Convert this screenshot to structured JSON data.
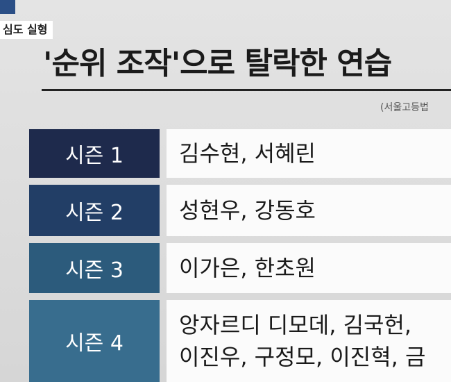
{
  "header": {
    "tag": "심도 실형",
    "title": "'순위 조작'으로 탈락한 연습",
    "source": "(서울고등법"
  },
  "table": {
    "rows": [
      {
        "season": "시즌 1",
        "names": [
          "김수현, 서혜린"
        ]
      },
      {
        "season": "시즌 2",
        "names": [
          "성현우, 강동호"
        ]
      },
      {
        "season": "시즌 3",
        "names": [
          "이가은, 한초원"
        ]
      },
      {
        "season": "시즌 4",
        "names": [
          "앙자르디 디모데, 김국헌,",
          "이진우, 구정모, 이진혁, 금"
        ]
      }
    ]
  }
}
